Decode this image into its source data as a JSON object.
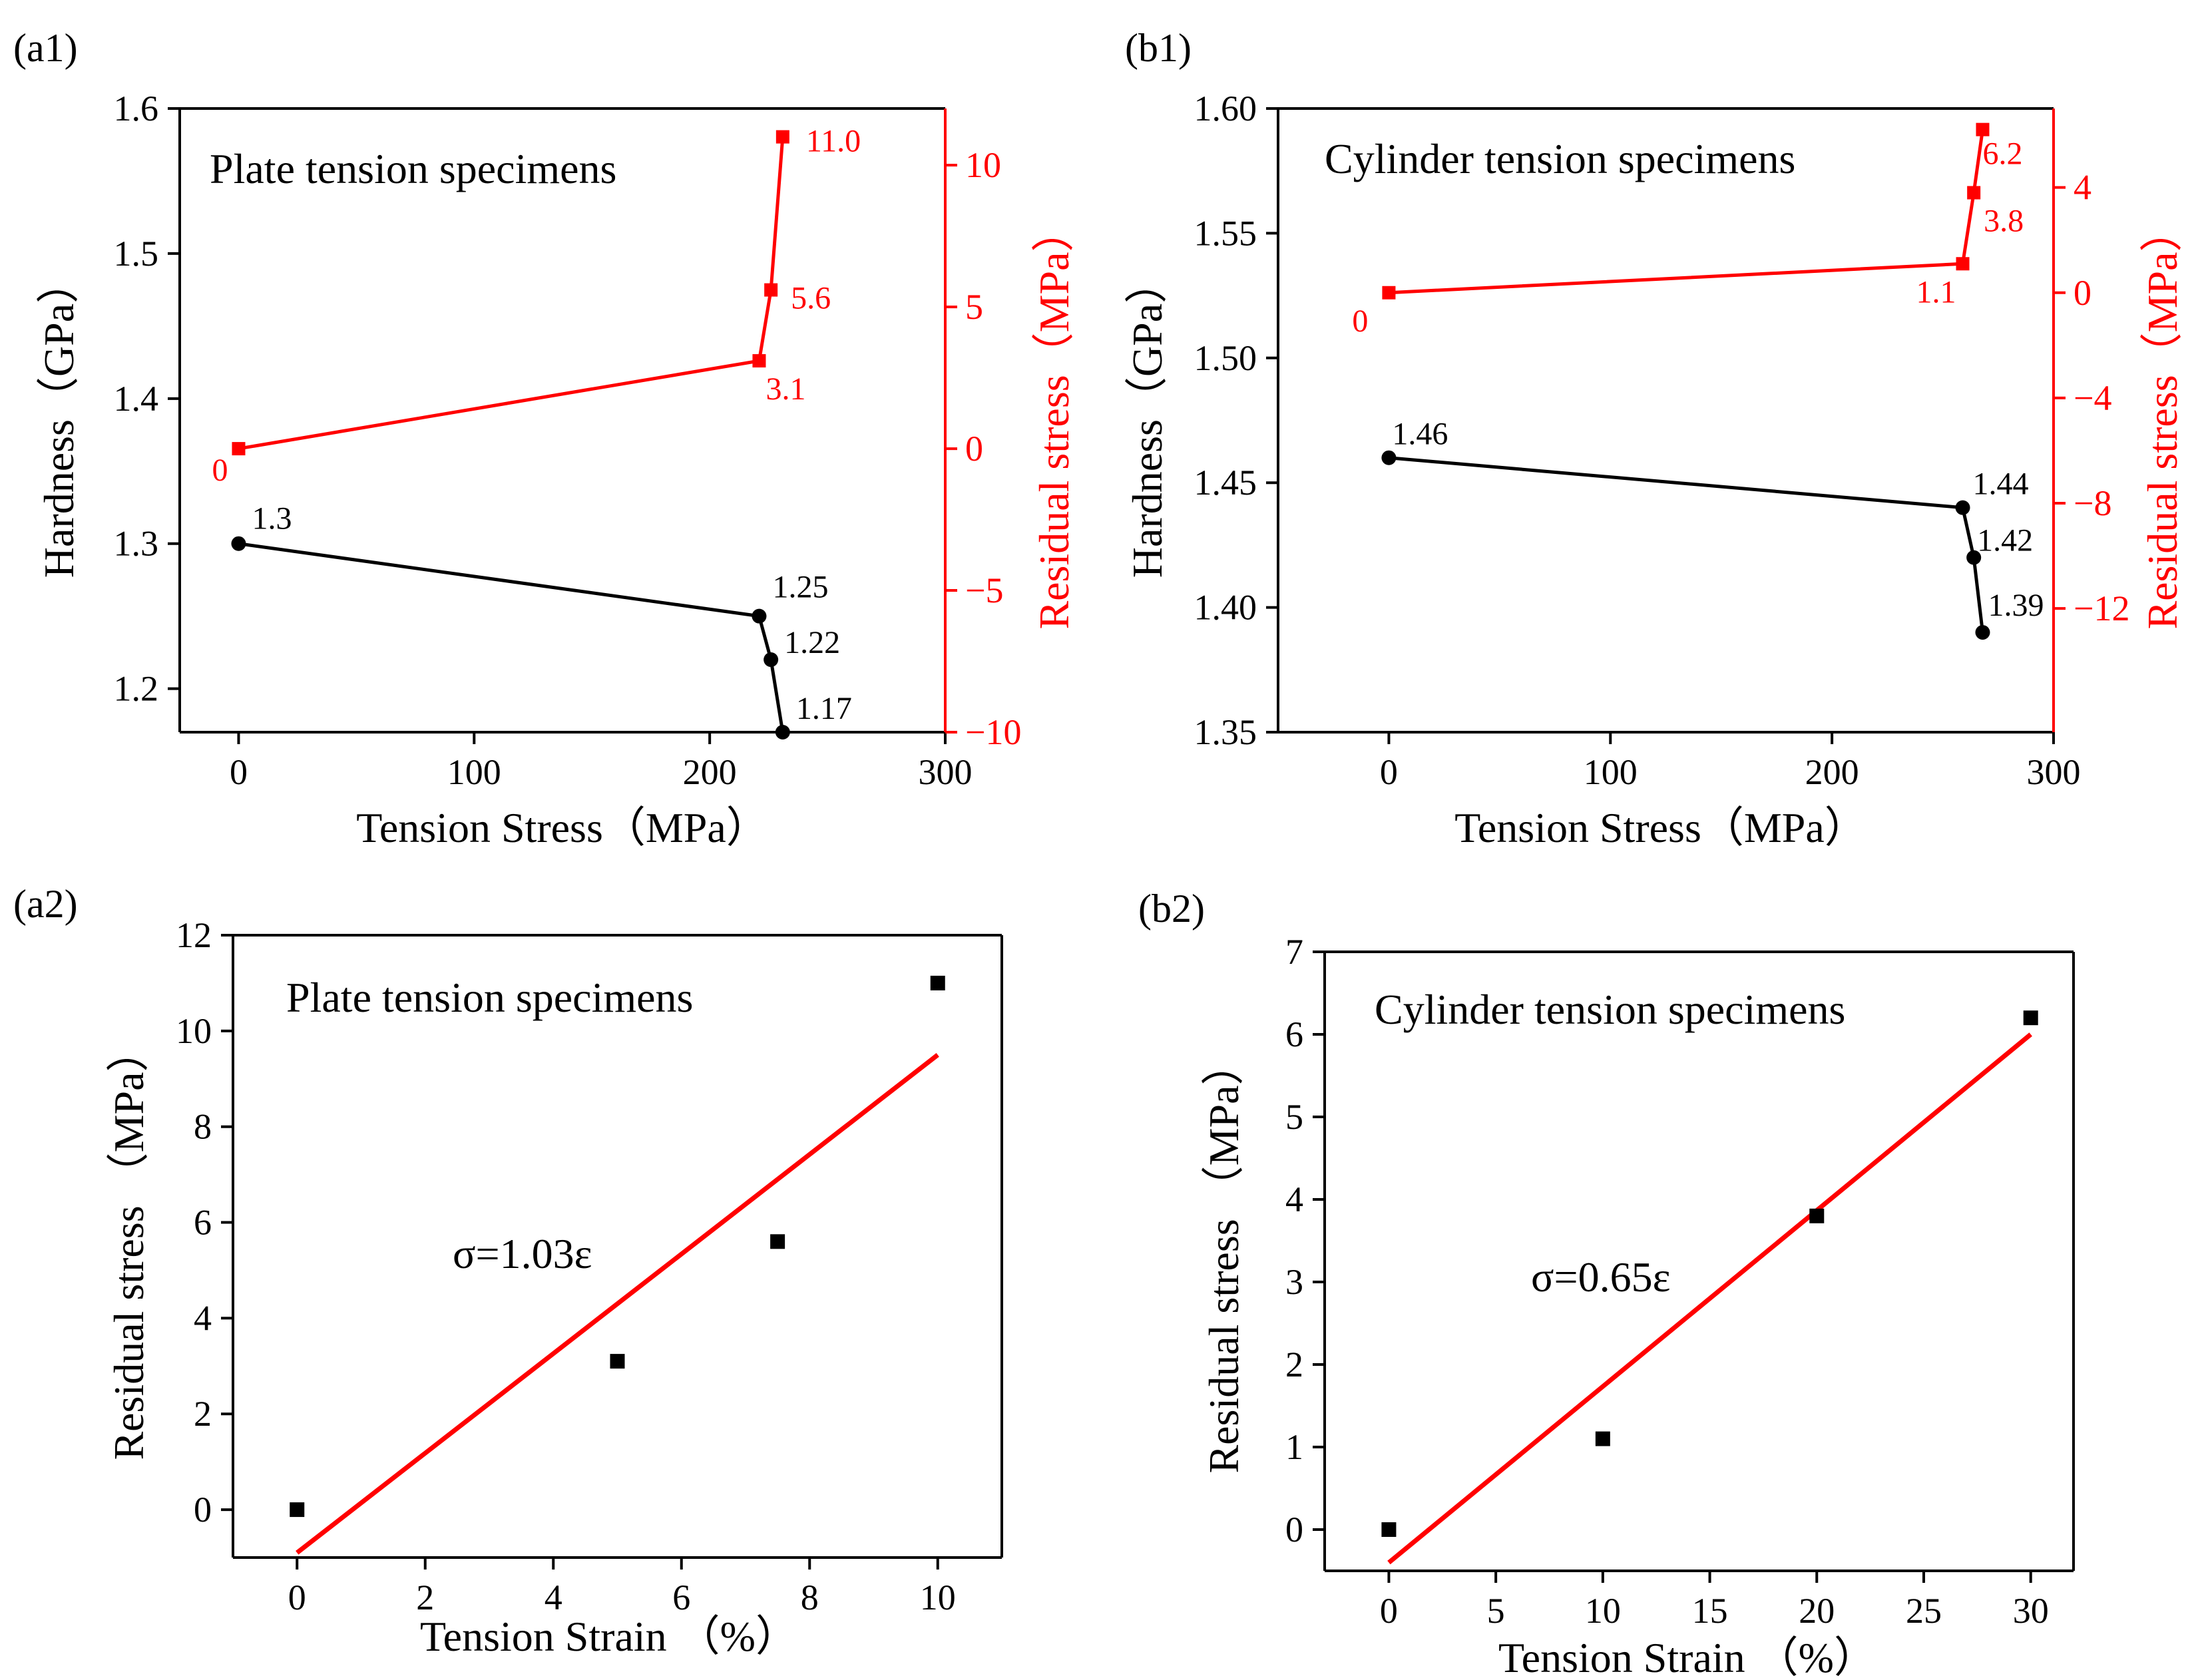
{
  "figure": {
    "panels": [
      {
        "id": "a1",
        "label": "(a1)"
      },
      {
        "id": "b1",
        "label": "(b1)"
      },
      {
        "id": "a2",
        "label": "(a2)"
      },
      {
        "id": "b2",
        "label": "(b2)"
      }
    ]
  },
  "colors": {
    "black": "#000000",
    "red": "#ff0000"
  },
  "chart_data": [
    {
      "id": "a1",
      "type": "line",
      "title": "Plate tension specimens",
      "xlabel": "Tension Stress（MPa）",
      "ylabel": "Hardness（GPa）",
      "y2label": "Residual stress（MPa）",
      "xlim": [
        -25,
        300
      ],
      "ylim": [
        1.17,
        1.6
      ],
      "y2lim": [
        -10,
        12
      ],
      "xticks": [
        0,
        100,
        200,
        300
      ],
      "yticks": [
        1.2,
        1.3,
        1.4,
        1.5,
        1.6
      ],
      "y2ticks": [
        -10,
        -5,
        0,
        5,
        10
      ],
      "series": [
        {
          "name": "Hardness",
          "axis": "left",
          "color": "#000000",
          "marker": "circle",
          "x": [
            0,
            221,
            226,
            231
          ],
          "y": [
            1.3,
            1.25,
            1.22,
            1.17
          ],
          "labels": [
            "1.3",
            "1.25",
            "1.22",
            "1.17"
          ]
        },
        {
          "name": "Residual stress",
          "axis": "right",
          "color": "#ff0000",
          "marker": "square",
          "x": [
            0,
            221,
            226,
            231
          ],
          "y": [
            0,
            3.1,
            5.6,
            11.0
          ],
          "labels": [
            "0",
            "3.1",
            "5.6",
            "11.0"
          ]
        }
      ]
    },
    {
      "id": "b1",
      "type": "line",
      "title": "Cylinder tension specimens",
      "xlabel": "Tension Stress（MPa）",
      "ylabel": "Hardness（GPa）",
      "y2label": "Residual stress（MPa）",
      "xlim": [
        -50,
        300
      ],
      "ylim": [
        1.35,
        1.6
      ],
      "y2lim": [
        -16.7,
        7
      ],
      "xticks": [
        0,
        100,
        200,
        300
      ],
      "yticks": [
        1.35,
        1.4,
        1.45,
        1.5,
        1.55,
        1.6
      ],
      "y2ticks": [
        -12,
        -8,
        -4,
        0,
        4
      ],
      "series": [
        {
          "name": "Hardness",
          "axis": "left",
          "color": "#000000",
          "marker": "circle",
          "x": [
            0,
            259,
            264,
            268
          ],
          "y": [
            1.46,
            1.44,
            1.42,
            1.39
          ],
          "labels": [
            "1.46",
            "1.44",
            "1.42",
            "1.39"
          ]
        },
        {
          "name": "Residual stress",
          "axis": "right",
          "color": "#ff0000",
          "marker": "square",
          "x": [
            0,
            259,
            264,
            268
          ],
          "y": [
            0,
            1.1,
            3.8,
            6.2
          ],
          "labels": [
            "0",
            "1.1",
            "3.8",
            "6.2"
          ]
        }
      ]
    },
    {
      "id": "a2",
      "type": "scatter",
      "title": "Plate tension specimens",
      "equation": "σ=1.03ε",
      "xlabel": "Tension Strain （%）",
      "ylabel": "Residual stress （MPa）",
      "xlim": [
        -1,
        11
      ],
      "ylim": [
        -1,
        12
      ],
      "xticks": [
        0,
        2,
        4,
        6,
        8,
        10
      ],
      "yticks": [
        0,
        2,
        4,
        6,
        8,
        10,
        12
      ],
      "points": {
        "x": [
          0,
          5,
          7.5,
          10
        ],
        "y": [
          0,
          3.1,
          5.6,
          11.0
        ]
      },
      "fit": {
        "x": [
          0,
          10
        ],
        "y": [
          -0.9,
          9.5
        ],
        "color": "#ff0000"
      }
    },
    {
      "id": "b2",
      "type": "scatter",
      "title": "Cylinder tension specimens",
      "equation": "σ=0.65ε",
      "xlabel": "Tension Strain （%）",
      "ylabel": "Residual stress （MPa）",
      "xlim": [
        -3,
        32
      ],
      "ylim": [
        -0.5,
        7
      ],
      "xticks": [
        0,
        5,
        10,
        15,
        20,
        25,
        30
      ],
      "yticks": [
        0,
        1,
        2,
        3,
        4,
        5,
        6,
        7
      ],
      "points": {
        "x": [
          0,
          10,
          20,
          30
        ],
        "y": [
          0,
          1.1,
          3.8,
          6.2
        ]
      },
      "fit": {
        "x": [
          0,
          30
        ],
        "y": [
          -0.4,
          6.0
        ],
        "color": "#ff0000"
      }
    }
  ]
}
